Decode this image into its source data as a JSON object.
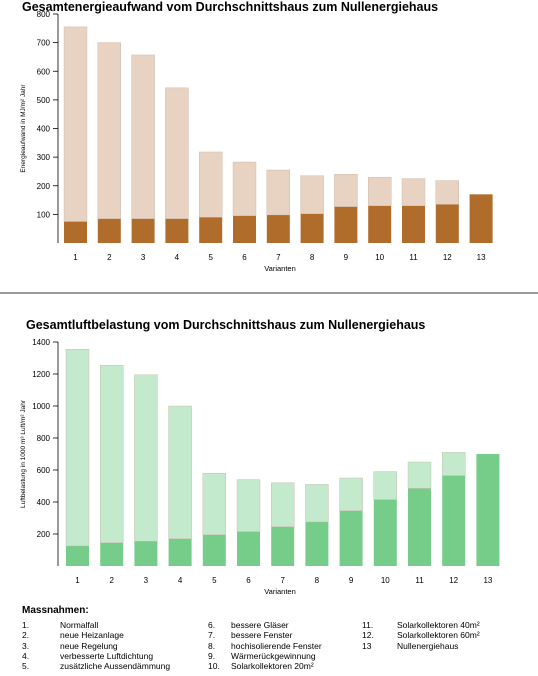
{
  "chart_data": [
    {
      "type": "bar",
      "title": "Gesamtenergieaufwand vom Durchschnittshaus zum Nullenergiehaus",
      "xlabel": "Varianten",
      "ylabel": "Energieaufwand in MJ/m² Jahr",
      "ylim": [
        0,
        800
      ],
      "yticks": [
        100,
        200,
        300,
        400,
        500,
        600,
        700,
        800
      ],
      "categories": [
        "1",
        "2",
        "3",
        "4",
        "5",
        "6",
        "7",
        "8",
        "9",
        "10",
        "11",
        "12",
        "13"
      ],
      "stacked": true,
      "series": [
        {
          "values": [
            75,
            85,
            85,
            85,
            90,
            95,
            98,
            102,
            127,
            130,
            130,
            135,
            170
          ],
          "color": "#b06c2a"
        },
        {
          "values": [
            680,
            615,
            572,
            457,
            228,
            188,
            157,
            133,
            113,
            100,
            95,
            83,
            0
          ],
          "color": "#e8d3c2"
        }
      ],
      "grid": false
    },
    {
      "type": "bar",
      "title": "Gesamtluftbelastung vom Durchschnittshaus zum Nullenergiehaus",
      "xlabel": "Varianten",
      "ylabel": "Luftbelastung in 1000 m³ Luft/m² Jahr",
      "ylim": [
        0,
        1400
      ],
      "yticks": [
        200,
        400,
        600,
        800,
        1000,
        1200,
        1400
      ],
      "categories": [
        "1",
        "2",
        "3",
        "4",
        "5",
        "6",
        "7",
        "8",
        "9",
        "10",
        "11",
        "12",
        "13"
      ],
      "stacked": true,
      "series": [
        {
          "values": [
            125,
            145,
            155,
            170,
            195,
            215,
            245,
            275,
            345,
            415,
            485,
            565,
            700
          ],
          "color": "#76cd8a"
        },
        {
          "values": [
            1230,
            1110,
            1040,
            830,
            385,
            325,
            275,
            235,
            205,
            175,
            165,
            145,
            0
          ],
          "color": "#c4eacd"
        }
      ],
      "grid": false
    }
  ],
  "legend": {
    "title": "Massnahmen:",
    "columns": [
      [
        {
          "num": "1.",
          "text": "Normalfall"
        },
        {
          "num": "2.",
          "text": "neue Heizanlage"
        },
        {
          "num": "3.",
          "text": "neue Regelung"
        },
        {
          "num": "4.",
          "text": "verbesserte Luftdichtung"
        },
        {
          "num": "5.",
          "text": "zusätzliche Aussendämmung"
        }
      ],
      [
        {
          "num": "6.",
          "text": "bessere Gläser"
        },
        {
          "num": "7.",
          "text": "bessere Fenster"
        },
        {
          "num": "8.",
          "text": "hochisolierende Fenster"
        },
        {
          "num": "9.",
          "text": "Wärmerückgewinnung"
        },
        {
          "num": "10.",
          "text": "Solarkollektoren 20m²"
        }
      ],
      [
        {
          "num": "11.",
          "text": "Solarkollektoren 40m²"
        },
        {
          "num": "12.",
          "text": "Solarkollektoren 60m²"
        },
        {
          "num": "13",
          "text": "Nullenergiehaus"
        }
      ]
    ]
  }
}
